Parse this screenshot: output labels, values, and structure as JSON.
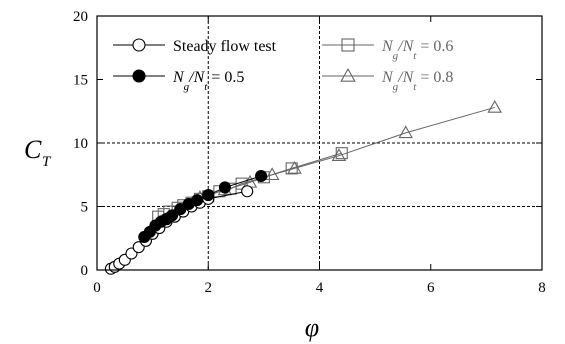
{
  "chart_data": {
    "type": "scatter",
    "xlabel": "φ",
    "ylabel_main": "C",
    "ylabel_sub": "T",
    "xlim": [
      0,
      8
    ],
    "ylim": [
      0,
      20
    ],
    "xticks": [
      0,
      2,
      4,
      6,
      8
    ],
    "yticks": [
      0,
      5,
      10,
      15,
      20
    ],
    "grid": "dashed at x=2,4 and y=5,10",
    "legend_position": "top-left (inside)",
    "series": [
      {
        "name": "Steady flow test",
        "marker": "open-circle",
        "color": "#000000",
        "x": [
          0.25,
          0.32,
          0.4,
          0.5,
          0.62,
          0.75,
          0.88,
          1.0,
          1.12,
          1.25,
          1.4,
          1.55,
          1.7,
          1.85,
          2.0,
          2.7
        ],
        "y": [
          0.1,
          0.25,
          0.5,
          0.8,
          1.3,
          1.8,
          2.3,
          2.85,
          3.3,
          3.8,
          4.2,
          4.6,
          5.0,
          5.3,
          5.6,
          6.2
        ]
      },
      {
        "name_prefix": "N",
        "name_sub1": "g",
        "name_mid": "/N",
        "name_sub2": "t",
        "name_suffix": " = 0.5",
        "marker": "filled-circle",
        "color": "#000000",
        "x": [
          0.85,
          0.95,
          1.05,
          1.15,
          1.25,
          1.35,
          1.5,
          1.65,
          1.8,
          2.0,
          2.3,
          2.95
        ],
        "y": [
          2.6,
          3.0,
          3.5,
          3.8,
          4.0,
          4.3,
          4.8,
          5.2,
          5.5,
          5.9,
          6.5,
          7.4
        ]
      },
      {
        "name_prefix": "N",
        "name_sub1": "g",
        "name_mid": "/N",
        "name_sub2": "t",
        "name_suffix": " = 0.6",
        "marker": "open-square",
        "color": "#666666",
        "x": [
          1.1,
          1.2,
          1.3,
          1.45,
          1.55,
          1.7,
          1.85,
          2.0,
          2.2,
          2.4,
          2.6,
          3.0,
          3.5,
          4.4
        ],
        "y": [
          4.2,
          4.4,
          4.6,
          4.9,
          5.1,
          5.3,
          5.6,
          5.8,
          6.2,
          6.4,
          6.8,
          7.3,
          8.0,
          9.2
        ]
      },
      {
        "name_prefix": "N",
        "name_sub1": "g",
        "name_mid": "/N",
        "name_sub2": "t",
        "name_suffix": " = 0.8",
        "marker": "open-triangle",
        "color": "#666666",
        "x": [
          1.85,
          2.3,
          2.75,
          3.15,
          3.55,
          4.35,
          5.55,
          7.15
        ],
        "y": [
          5.7,
          6.3,
          6.9,
          7.5,
          8.0,
          9.0,
          10.8,
          12.8
        ]
      }
    ]
  }
}
